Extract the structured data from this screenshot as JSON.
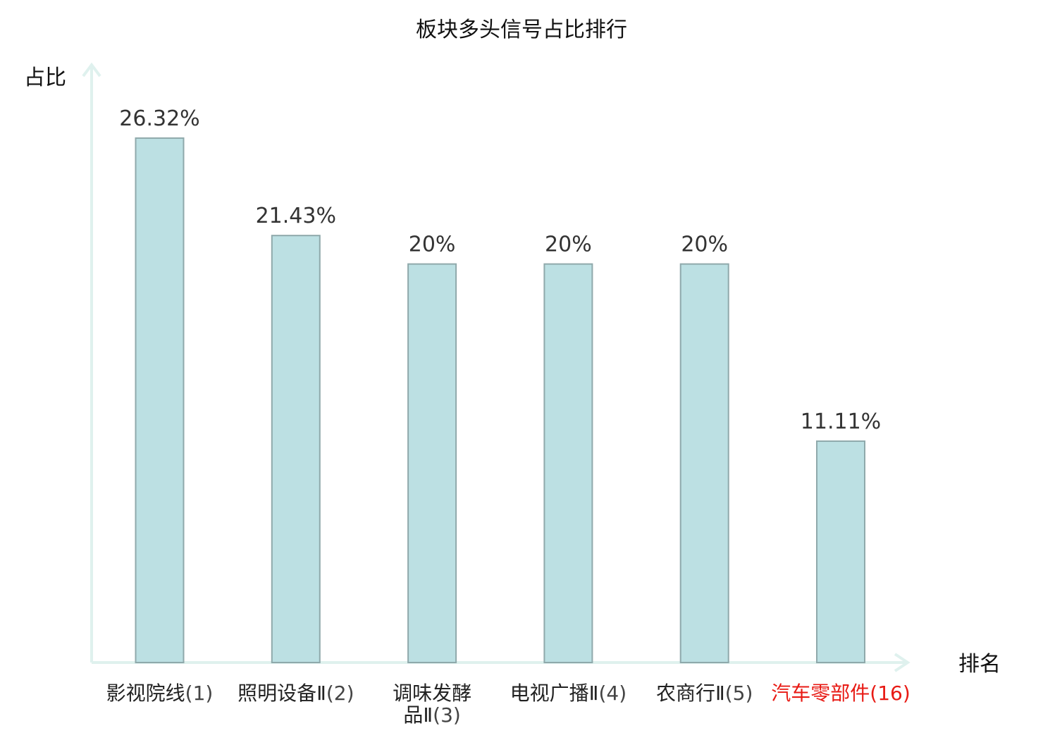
{
  "chart_data": {
    "type": "bar",
    "title": "板块多头信号占比排行",
    "ylabel": "占比",
    "xlabel": "排名",
    "ylim": [
      0,
      30
    ],
    "grid": false,
    "categories": [
      {
        "name": "影视院线",
        "rank": "(1)",
        "highlight": false
      },
      {
        "name": "照明设备Ⅱ",
        "rank": "(2)",
        "highlight": false
      },
      {
        "name": "调味发酵品Ⅱ",
        "rank": "(3)",
        "highlight": false
      },
      {
        "name": "电视广播Ⅱ",
        "rank": "(4)",
        "highlight": false
      },
      {
        "name": "农商行Ⅱ",
        "rank": "(5)",
        "highlight": false
      },
      {
        "name": "汽车零部件",
        "rank": "(16)",
        "highlight": true
      }
    ],
    "values": [
      26.32,
      21.43,
      20,
      20,
      20,
      11.11
    ],
    "value_labels": [
      "26.32%",
      "21.43%",
      "20%",
      "20%",
      "20%",
      "11.11%"
    ],
    "colors": {
      "bar_fill": "#bce0e3",
      "bar_stroke": "#8fa9ab",
      "axis": "#dff1ee",
      "label_normal": "#222222",
      "paren_normal": "#444444",
      "label_highlight": "#e81a14"
    }
  }
}
